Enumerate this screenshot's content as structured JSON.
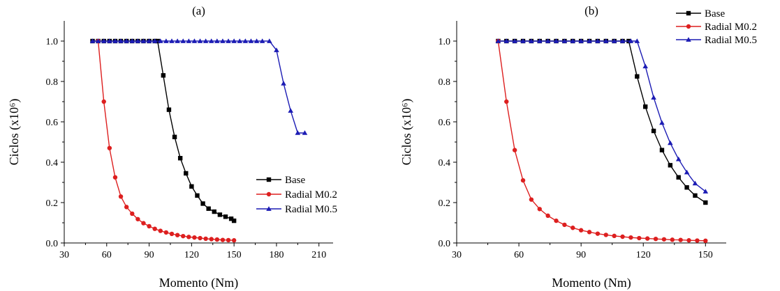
{
  "chart_data": [
    {
      "type": "line",
      "title": "(a)",
      "xlabel": "Momento (Nm)",
      "ylabel": "Ciclos (x10⁶)",
      "xlim": [
        30,
        220
      ],
      "ylim": [
        0,
        1.1
      ],
      "xticks": [
        "30",
        "60",
        "90",
        "120",
        "150",
        "180",
        "210"
      ],
      "xtick_values": [
        30,
        60,
        90,
        120,
        150,
        180,
        210
      ],
      "yticks": [
        "0.0",
        "0.2",
        "0.4",
        "0.6",
        "0.8",
        "1.0"
      ],
      "ytick_values": [
        0,
        0.2,
        0.4,
        0.6,
        0.8,
        1.0
      ],
      "grid": false,
      "legend_position": "bottom-right",
      "series": [
        {
          "name": "Base",
          "color": "#000000",
          "marker": "square",
          "x": [
            50,
            54,
            58,
            62,
            66,
            70,
            74,
            78,
            82,
            86,
            90,
            94,
            96,
            100,
            104,
            108,
            112,
            116,
            120,
            124,
            128,
            132,
            136,
            140,
            144,
            148,
            150
          ],
          "y": [
            1.0,
            1.0,
            1.0,
            1.0,
            1.0,
            1.0,
            1.0,
            1.0,
            1.0,
            1.0,
            1.0,
            1.0,
            1.0,
            0.83,
            0.66,
            0.525,
            0.42,
            0.345,
            0.28,
            0.235,
            0.195,
            0.17,
            0.155,
            0.14,
            0.13,
            0.12,
            0.11
          ]
        },
        {
          "name": "Radial M0.2",
          "color": "#dd1f1f",
          "marker": "circle",
          "x": [
            54,
            58,
            62,
            66,
            70,
            74,
            78,
            82,
            86,
            90,
            94,
            98,
            102,
            106,
            110,
            114,
            118,
            122,
            126,
            130,
            134,
            138,
            142,
            146,
            150
          ],
          "y": [
            1.0,
            0.7,
            0.47,
            0.325,
            0.23,
            0.178,
            0.145,
            0.118,
            0.098,
            0.083,
            0.07,
            0.06,
            0.052,
            0.045,
            0.039,
            0.034,
            0.03,
            0.027,
            0.024,
            0.021,
            0.019,
            0.017,
            0.015,
            0.014,
            0.013
          ]
        },
        {
          "name": "Radial M0.5",
          "color": "#1c1cb4",
          "marker": "triangle",
          "x": [
            50,
            54,
            58,
            62,
            66,
            70,
            74,
            78,
            82,
            86,
            90,
            94,
            98,
            102,
            106,
            110,
            114,
            118,
            122,
            126,
            130,
            134,
            138,
            142,
            146,
            150,
            154,
            158,
            162,
            166,
            170,
            175,
            180,
            185,
            190,
            195,
            200
          ],
          "y": [
            1.0,
            1.0,
            1.0,
            1.0,
            1.0,
            1.0,
            1.0,
            1.0,
            1.0,
            1.0,
            1.0,
            1.0,
            1.0,
            1.0,
            1.0,
            1.0,
            1.0,
            1.0,
            1.0,
            1.0,
            1.0,
            1.0,
            1.0,
            1.0,
            1.0,
            1.0,
            1.0,
            1.0,
            1.0,
            1.0,
            1.0,
            1.0,
            0.955,
            0.79,
            0.655,
            0.545,
            0.545
          ]
        }
      ]
    },
    {
      "type": "line",
      "title": "(b)",
      "xlabel": "Momento (Nm)",
      "ylabel": "Ciclos (x10⁶)",
      "xlim": [
        30,
        160
      ],
      "ylim": [
        0,
        1.1
      ],
      "xticks": [
        "30",
        "60",
        "90",
        "120",
        "150"
      ],
      "xtick_values": [
        30,
        60,
        90,
        120,
        150
      ],
      "yticks": [
        "0.0",
        "0.2",
        "0.4",
        "0.6",
        "0.8",
        "1.0"
      ],
      "ytick_values": [
        0,
        0.2,
        0.4,
        0.6,
        0.8,
        1.0
      ],
      "grid": false,
      "legend_position": "top-right",
      "series": [
        {
          "name": "Base",
          "color": "#000000",
          "marker": "square",
          "x": [
            50,
            54,
            58,
            62,
            66,
            70,
            74,
            78,
            82,
            86,
            90,
            94,
            98,
            102,
            106,
            110,
            113,
            117,
            121,
            125,
            129,
            133,
            137,
            141,
            145,
            150
          ],
          "y": [
            1.0,
            1.0,
            1.0,
            1.0,
            1.0,
            1.0,
            1.0,
            1.0,
            1.0,
            1.0,
            1.0,
            1.0,
            1.0,
            1.0,
            1.0,
            1.0,
            1.0,
            0.825,
            0.675,
            0.555,
            0.46,
            0.385,
            0.325,
            0.275,
            0.235,
            0.2
          ]
        },
        {
          "name": "Radial M0.2",
          "color": "#dd1f1f",
          "marker": "circle",
          "x": [
            50,
            54,
            58,
            62,
            66,
            70,
            74,
            78,
            82,
            86,
            90,
            94,
            98,
            102,
            106,
            110,
            114,
            118,
            122,
            126,
            130,
            134,
            138,
            142,
            146,
            150
          ],
          "y": [
            1.0,
            0.7,
            0.46,
            0.31,
            0.215,
            0.168,
            0.135,
            0.11,
            0.09,
            0.075,
            0.063,
            0.054,
            0.046,
            0.04,
            0.035,
            0.031,
            0.027,
            0.024,
            0.022,
            0.02,
            0.018,
            0.016,
            0.015,
            0.013,
            0.012,
            0.011
          ]
        },
        {
          "name": "Radial M0.5",
          "color": "#1c1cb4",
          "marker": "triangle",
          "x": [
            50,
            54,
            58,
            62,
            66,
            70,
            74,
            78,
            82,
            86,
            90,
            94,
            98,
            102,
            106,
            110,
            114,
            117,
            121,
            125,
            129,
            133,
            137,
            141,
            145,
            150
          ],
          "y": [
            1.0,
            1.0,
            1.0,
            1.0,
            1.0,
            1.0,
            1.0,
            1.0,
            1.0,
            1.0,
            1.0,
            1.0,
            1.0,
            1.0,
            1.0,
            1.0,
            1.0,
            1.0,
            0.875,
            0.72,
            0.595,
            0.495,
            0.415,
            0.35,
            0.295,
            0.255
          ]
        }
      ]
    }
  ]
}
